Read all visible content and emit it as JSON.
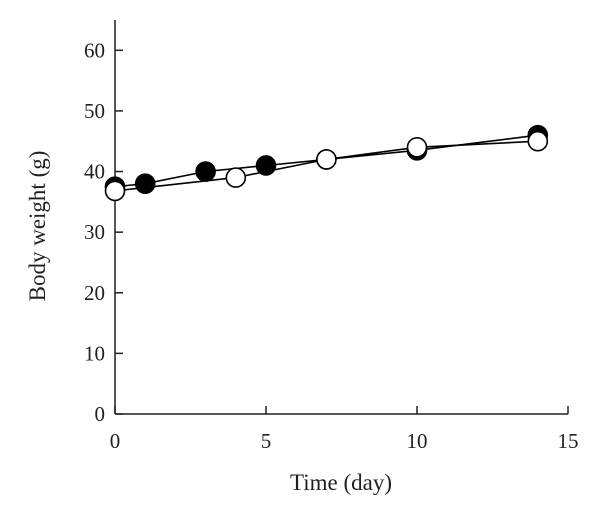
{
  "chart_data": {
    "type": "line",
    "title": "",
    "xlabel": "Time (day)",
    "ylabel": "Body weight (g)",
    "xlim": [
      0,
      15
    ],
    "ylim": [
      0,
      65
    ],
    "xticks": [
      0,
      5,
      10,
      15
    ],
    "yticks": [
      0,
      10,
      20,
      30,
      40,
      50,
      60
    ],
    "grid": false,
    "legend": "none",
    "series": [
      {
        "marker": "filled-circle",
        "color": "#000000",
        "x": [
          0,
          1,
          3,
          5,
          7,
          10,
          14
        ],
        "y": [
          37.5,
          38,
          40,
          41,
          42,
          43.5,
          46
        ]
      },
      {
        "marker": "open-circle",
        "color": "#000000",
        "x": [
          0,
          4,
          7,
          10,
          14
        ],
        "y": [
          36.8,
          39,
          42,
          44,
          45
        ]
      }
    ]
  }
}
